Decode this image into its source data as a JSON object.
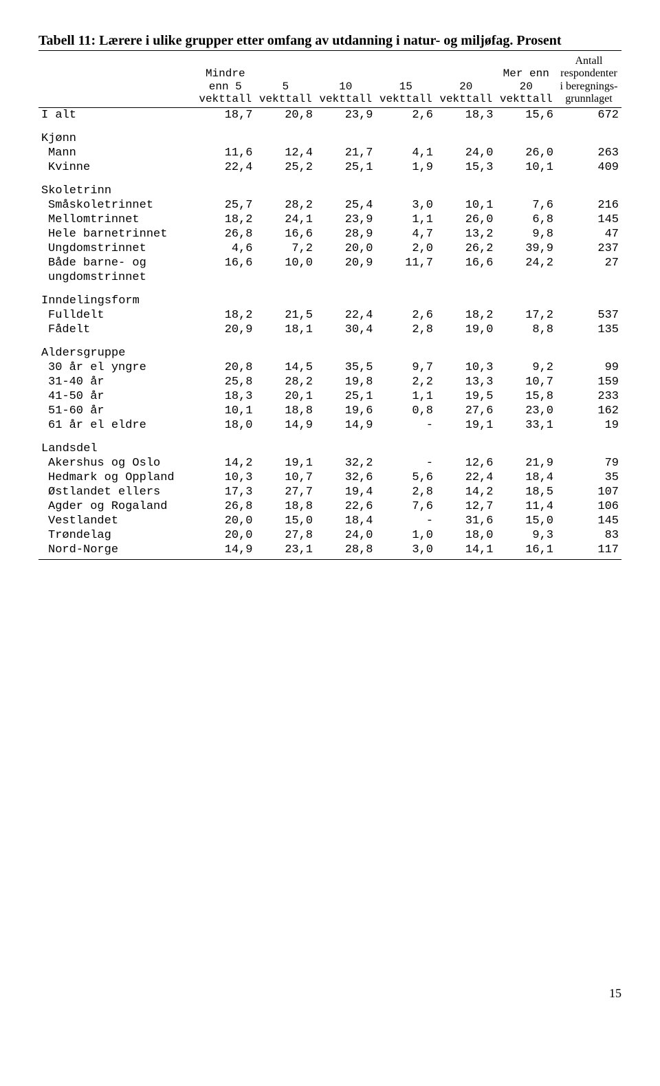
{
  "title": "Tabell 11: Lærere i ulike grupper etter omfang av utdanning i natur- og miljøfag. Prosent",
  "page_number": "15",
  "columns": {
    "c1": "Mindre\nenn 5\nvekttall",
    "c2": "5\nvekttall",
    "c3": "10\nvekttall",
    "c4": "15\nvekttall",
    "c5": "20\nvekttall",
    "c6": "Mer enn\n20\nvekttall",
    "c7": "Antall\nrespondenter\ni beregnings-\ngrunnlaget"
  },
  "rows": [
    {
      "label": "I alt",
      "v": [
        "18,7",
        "20,8",
        "23,9",
        "2,6",
        "18,3",
        "15,6",
        "672"
      ],
      "cls": "top"
    },
    {
      "label": "Kjønn",
      "section": true
    },
    {
      "label": "Mann",
      "v": [
        "11,6",
        "12,4",
        "21,7",
        "4,1",
        "24,0",
        "26,0",
        "263"
      ],
      "sub": true
    },
    {
      "label": "Kvinne",
      "v": [
        "22,4",
        "25,2",
        "25,1",
        "1,9",
        "15,3",
        "10,1",
        "409"
      ],
      "sub": true
    },
    {
      "label": "Skoletrinn",
      "section": true
    },
    {
      "label": "Småskoletrinnet",
      "v": [
        "25,7",
        "28,2",
        "25,4",
        "3,0",
        "10,1",
        "7,6",
        "216"
      ],
      "sub": true
    },
    {
      "label": "Mellomtrinnet",
      "v": [
        "18,2",
        "24,1",
        "23,9",
        "1,1",
        "26,0",
        "6,8",
        "145"
      ],
      "sub": true
    },
    {
      "label": "Hele barnetrinnet",
      "v": [
        "26,8",
        "16,6",
        "28,9",
        "4,7",
        "13,2",
        "9,8",
        "47"
      ],
      "sub": true
    },
    {
      "label": "Ungdomstrinnet",
      "v": [
        "4,6",
        "7,2",
        "20,0",
        "2,0",
        "26,2",
        "39,9",
        "237"
      ],
      "sub": true
    },
    {
      "label": "Både barne- og",
      "v": [
        "16,6",
        "10,0",
        "20,9",
        "11,7",
        "16,6",
        "24,2",
        "27"
      ],
      "sub": true
    },
    {
      "label": "ungdomstrinnet",
      "v": [
        "",
        "",
        "",
        "",
        "",
        "",
        ""
      ],
      "sub": true,
      "cont": true
    },
    {
      "label": "Inndelingsform",
      "section": true
    },
    {
      "label": "Fulldelt",
      "v": [
        "18,2",
        "21,5",
        "22,4",
        "2,6",
        "18,2",
        "17,2",
        "537"
      ],
      "sub": true
    },
    {
      "label": "Fådelt",
      "v": [
        "20,9",
        "18,1",
        "30,4",
        "2,8",
        "19,0",
        "8,8",
        "135"
      ],
      "sub": true
    },
    {
      "label": "Aldersgruppe",
      "section": true
    },
    {
      "label": "30 år el yngre",
      "v": [
        "20,8",
        "14,5",
        "35,5",
        "9,7",
        "10,3",
        "9,2",
        "99"
      ],
      "sub": true
    },
    {
      "label": "31-40 år",
      "v": [
        "25,8",
        "28,2",
        "19,8",
        "2,2",
        "13,3",
        "10,7",
        "159"
      ],
      "sub": true
    },
    {
      "label": "41-50 år",
      "v": [
        "18,3",
        "20,1",
        "25,1",
        "1,1",
        "19,5",
        "15,8",
        "233"
      ],
      "sub": true
    },
    {
      "label": "51-60 år",
      "v": [
        "10,1",
        "18,8",
        "19,6",
        "0,8",
        "27,6",
        "23,0",
        "162"
      ],
      "sub": true
    },
    {
      "label": "61 år el eldre",
      "v": [
        "18,0",
        "14,9",
        "14,9",
        "-",
        "19,1",
        "33,1",
        "19"
      ],
      "sub": true
    },
    {
      "label": "Landsdel",
      "section": true
    },
    {
      "label": "Akershus og Oslo",
      "v": [
        "14,2",
        "19,1",
        "32,2",
        "-",
        "12,6",
        "21,9",
        "79"
      ],
      "sub": true
    },
    {
      "label": "Hedmark og Oppland",
      "v": [
        "10,3",
        "10,7",
        "32,6",
        "5,6",
        "22,4",
        "18,4",
        "35"
      ],
      "sub": true
    },
    {
      "label": "Østlandet ellers",
      "v": [
        "17,3",
        "27,7",
        "19,4",
        "2,8",
        "14,2",
        "18,5",
        "107"
      ],
      "sub": true
    },
    {
      "label": "Agder og Rogaland",
      "v": [
        "26,8",
        "18,8",
        "22,6",
        "7,6",
        "12,7",
        "11,4",
        "106"
      ],
      "sub": true
    },
    {
      "label": "Vestlandet",
      "v": [
        "20,0",
        "15,0",
        "18,4",
        "-",
        "31,6",
        "15,0",
        "145"
      ],
      "sub": true
    },
    {
      "label": "Trøndelag",
      "v": [
        "20,0",
        "27,8",
        "24,0",
        "1,0",
        "18,0",
        "9,3",
        "83"
      ],
      "sub": true
    },
    {
      "label": "Nord-Norge",
      "v": [
        "14,9",
        "23,1",
        "28,8",
        "3,0",
        "14,1",
        "16,1",
        "117"
      ],
      "sub": true,
      "last": true
    }
  ]
}
